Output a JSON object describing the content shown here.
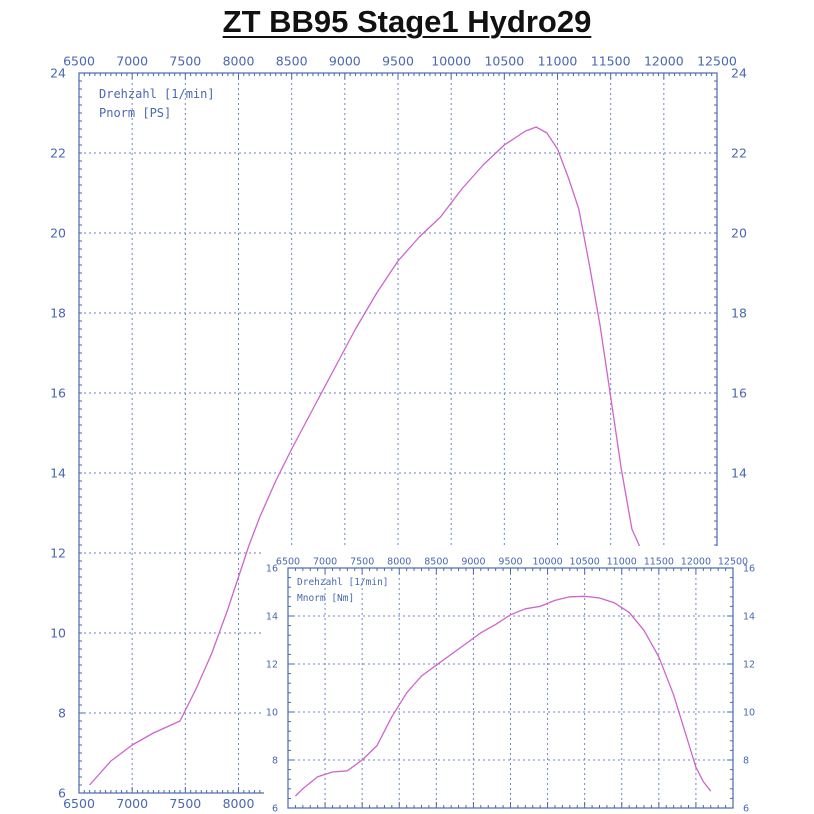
{
  "title": "ZT BB95 Stage1 Hydro29",
  "colors": {
    "axis": "#4a67b0",
    "grid": "#6f86c6",
    "curve": "#cc66cc"
  },
  "chart_data": [
    {
      "type": "line",
      "title": "",
      "xlabel": "Drehzahl [1/min]",
      "ylabel": "Pnorm [PS]",
      "legend": [
        "Drehzahl [1/min]",
        "Pnorm [PS]"
      ],
      "legend_placement": "top-left",
      "grid": true,
      "xlim": [
        6500,
        12500
      ],
      "ylim": [
        6,
        24
      ],
      "x_ticks": [
        6500,
        7000,
        7500,
        8000,
        8500,
        9000,
        9500,
        10000,
        10500,
        11000,
        11500,
        12000,
        12500
      ],
      "x_tick_labels": [
        "6500",
        "7000",
        "7500",
        "8000",
        "8500",
        "9000",
        "9500",
        "10000",
        "10500",
        "11000",
        "11500",
        "12000",
        "12500"
      ],
      "y_ticks": [
        6,
        8,
        10,
        12,
        14,
        16,
        18,
        20,
        22,
        24
      ],
      "y_tick_labels": [
        "6",
        "8",
        "10",
        "12",
        "14",
        "16",
        "18",
        "20",
        "22",
        "24"
      ],
      "series": [
        {
          "x": [
            6600,
            6800,
            7000,
            7200,
            7450,
            7600,
            7750,
            7900,
            8000,
            8100,
            8200,
            8350,
            8500,
            8700,
            8900,
            9100,
            9300,
            9500,
            9700,
            9900,
            10100,
            10300,
            10500,
            10700,
            10800,
            10900,
            11000,
            11100,
            11200,
            11300,
            11400,
            11500,
            11600,
            11700,
            11800
          ],
          "y": [
            6.2,
            6.8,
            7.2,
            7.5,
            7.8,
            8.6,
            9.5,
            10.6,
            11.4,
            12.2,
            12.9,
            13.8,
            14.6,
            15.6,
            16.6,
            17.6,
            18.5,
            19.3,
            19.9,
            20.4,
            21.1,
            21.7,
            22.2,
            22.55,
            22.65,
            22.5,
            22.1,
            21.4,
            20.6,
            19.2,
            17.7,
            15.9,
            14.1,
            12.6,
            12.0
          ]
        }
      ]
    },
    {
      "type": "line",
      "title": "",
      "xlabel": "Drehzahl [1/min]",
      "ylabel": "Mnorm [Nm]",
      "legend": [
        "Drehzahl [1/min]",
        "Mnorm [Nm]"
      ],
      "legend_placement": "top-left",
      "grid": true,
      "xlim": [
        6500,
        12500
      ],
      "ylim": [
        6,
        16
      ],
      "x_ticks": [
        6500,
        7000,
        7500,
        8000,
        8500,
        9000,
        9500,
        10000,
        10500,
        11000,
        11500,
        12000,
        12500
      ],
      "x_tick_labels": [
        "6500",
        "7000",
        "7500",
        "8000",
        "8500",
        "9000",
        "9500",
        "10000",
        "10500",
        "11000",
        "11500",
        "12000",
        "12500"
      ],
      "y_ticks": [
        6,
        8,
        10,
        12,
        14,
        16
      ],
      "y_tick_labels": [
        "6",
        "8",
        "10",
        "12",
        "14",
        "16"
      ],
      "series": [
        {
          "x": [
            6600,
            6700,
            6900,
            7100,
            7300,
            7500,
            7700,
            7900,
            8100,
            8300,
            8500,
            8700,
            8900,
            9100,
            9300,
            9500,
            9700,
            9900,
            10100,
            10300,
            10500,
            10700,
            10900,
            11100,
            11300,
            11500,
            11700,
            11900,
            12000,
            12100,
            12200
          ],
          "y": [
            6.5,
            6.8,
            7.3,
            7.5,
            7.55,
            8.0,
            8.6,
            9.8,
            10.8,
            11.5,
            11.95,
            12.4,
            12.85,
            13.3,
            13.65,
            14.05,
            14.3,
            14.4,
            14.65,
            14.8,
            14.82,
            14.75,
            14.55,
            14.15,
            13.4,
            12.3,
            10.7,
            8.7,
            7.7,
            7.1,
            6.7
          ]
        }
      ]
    }
  ]
}
